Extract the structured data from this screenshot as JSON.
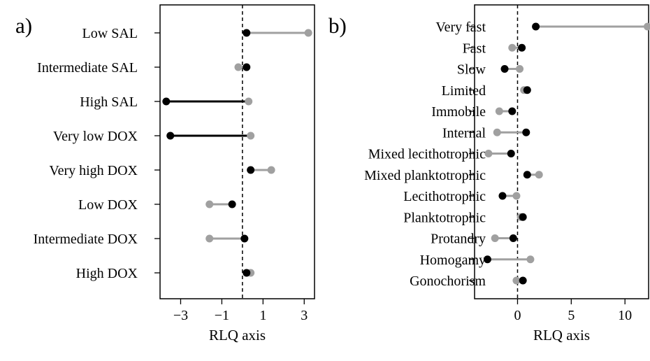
{
  "chart_data": [
    {
      "panel_label": "a)",
      "type": "dot-range",
      "xlabel": "RLQ axis",
      "xlim": [
        -4.0,
        3.5
      ],
      "xticks": [
        "−3",
        "−1",
        "1",
        "3"
      ],
      "xtick_values": [
        -3,
        -1,
        1,
        3
      ],
      "reference_line_x": 0,
      "colors": {
        "black": "#000000",
        "grey": "#a0a0a0"
      },
      "categories": [
        {
          "label": "Low SAL",
          "black": 0.2,
          "grey": 3.2,
          "segment": "grey"
        },
        {
          "label": "Intermediate SAL",
          "black": 0.2,
          "grey": -0.2,
          "segment": "grey"
        },
        {
          "label": "High SAL",
          "black": -3.7,
          "grey": 0.3,
          "segment": "black"
        },
        {
          "label": "Very low DOX",
          "black": -3.5,
          "grey": 0.4,
          "segment": "black"
        },
        {
          "label": "Very high DOX",
          "black": 0.4,
          "grey": 1.4,
          "segment": "grey"
        },
        {
          "label": "Low DOX",
          "black": -0.5,
          "grey": -1.6,
          "segment": "grey"
        },
        {
          "label": "Intermediate DOX",
          "black": 0.1,
          "grey": -1.6,
          "segment": "grey"
        },
        {
          "label": "High DOX",
          "black": 0.2,
          "grey": 0.4,
          "segment": "grey"
        }
      ]
    },
    {
      "panel_label": "b)",
      "type": "dot-range",
      "xlabel": "RLQ axis",
      "xlim": [
        -4.0,
        12.2
      ],
      "xticks": [
        "0",
        "5",
        "10"
      ],
      "xtick_values": [
        0,
        5,
        10
      ],
      "reference_line_x": 0,
      "colors": {
        "black": "#000000",
        "grey": "#a0a0a0"
      },
      "categories": [
        {
          "label": "Very fast",
          "black": 1.7,
          "grey": 12.1,
          "segment": "grey"
        },
        {
          "label": "Fast",
          "black": 0.4,
          "grey": -0.5,
          "segment": "grey"
        },
        {
          "label": "Slow",
          "black": -1.2,
          "grey": 0.2,
          "segment": "grey"
        },
        {
          "label": "Limited",
          "black": 0.9,
          "grey": 0.6,
          "segment": "grey"
        },
        {
          "label": "Immobile",
          "black": -0.5,
          "grey": -1.7,
          "segment": "grey"
        },
        {
          "label": "Internal",
          "black": 0.8,
          "grey": -1.9,
          "segment": "grey"
        },
        {
          "label": "Mixed lecithotrophic",
          "black": -0.6,
          "grey": -2.7,
          "segment": "grey"
        },
        {
          "label": "Mixed planktotrophic",
          "black": 0.9,
          "grey": 2.0,
          "segment": "grey"
        },
        {
          "label": "Lecithotrophic",
          "black": -1.4,
          "grey": -0.1,
          "segment": "grey"
        },
        {
          "label": "Planktotrophic",
          "black": 0.5,
          "grey": 0.3,
          "segment": "grey"
        },
        {
          "label": "Protandry",
          "black": -0.4,
          "grey": -2.1,
          "segment": "grey"
        },
        {
          "label": "Homogamy",
          "black": -2.8,
          "grey": 1.2,
          "segment": "grey"
        },
        {
          "label": "Gonochorism",
          "black": 0.5,
          "grey": -0.1,
          "segment": "grey"
        }
      ]
    }
  ]
}
